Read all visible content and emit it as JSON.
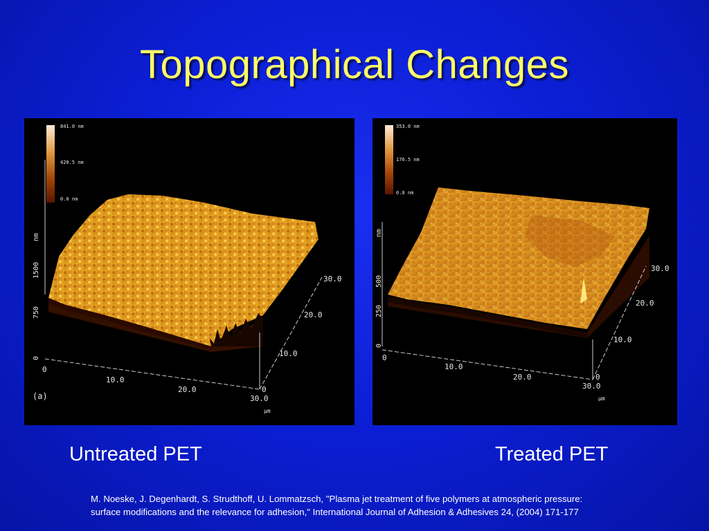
{
  "slide": {
    "title": "Topographical Changes",
    "captions": {
      "untreated": "Untreated PET",
      "treated": "Treated PET"
    },
    "reference": {
      "line1": "M. Noeske, J. Degenhardt, S. Strudthoff, U. Lommatzsch, \"Plasma jet treatment of five polymers at atmospheric pressure:",
      "line2": "surface modifications and the relevance for adhesion,\" International Journal of Adhesion & Adhesives 24, (2004) 171-177"
    }
  },
  "afm_untreated": {
    "panel_label": "(a)",
    "scale_bar": {
      "max": "841.0 nm",
      "mid": "420.5 nm",
      "min": "0.0 nm"
    },
    "z_axis": {
      "unit": "nm",
      "ticks": [
        "0",
        "750",
        "1500"
      ]
    },
    "x_axis": {
      "ticks": [
        "0",
        "10.0",
        "20.0",
        "30.0"
      ],
      "unit": "µm"
    },
    "y_axis": {
      "ticks": [
        "0",
        "10.0",
        "20.0",
        "30.0"
      ]
    }
  },
  "afm_treated": {
    "scale_bar": {
      "max": "353.0 nm",
      "mid": "176.5 nm",
      "min": "0.0 nm"
    },
    "z_axis": {
      "unit": "nm",
      "ticks": [
        "0",
        "250",
        "500"
      ]
    },
    "x_axis": {
      "ticks": [
        "0",
        "10.0",
        "20.0",
        "30.0"
      ],
      "unit": "µm"
    },
    "y_axis": {
      "ticks": [
        "0",
        "10.0",
        "20.0",
        "30.0"
      ]
    }
  },
  "colors": {
    "title": "#ffff66",
    "background": "#0c1fd6",
    "surface_light": "#f0b628",
    "surface_dark": "#7a2a00"
  }
}
